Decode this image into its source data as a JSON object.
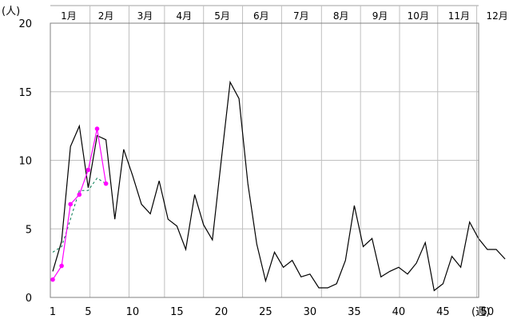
{
  "chart_data": {
    "type": "line",
    "y_unit_label": "(人)",
    "x_unit_label": "(週)",
    "ylim": [
      0,
      20
    ],
    "y_ticks": [
      "0",
      "5",
      "10",
      "15",
      "20"
    ],
    "xlim": [
      1,
      53
    ],
    "x_ticks": [
      "1",
      "5",
      "10",
      "15",
      "20",
      "25",
      "30",
      "35",
      "40",
      "45",
      "50"
    ],
    "x_tick_values": [
      1,
      5,
      10,
      15,
      20,
      25,
      30,
      35,
      40,
      45,
      50
    ],
    "months": [
      "1月",
      "2月",
      "3月",
      "4月",
      "5月",
      "6月",
      "7月",
      "8月",
      "9月",
      "10月",
      "11月",
      "12月"
    ],
    "month_centers": [
      2.8,
      7.0,
      11.4,
      15.8,
      20.1,
      24.5,
      29.0,
      33.5,
      37.9,
      42.2,
      46.8,
      51.1
    ],
    "grid": true,
    "series": [
      {
        "color": "#000000",
        "style": "solid",
        "marker": "none",
        "x": [
          1,
          2,
          3,
          4,
          5,
          6,
          7,
          8,
          9,
          10,
          11,
          12,
          13,
          14,
          15,
          16,
          17,
          18,
          19,
          20,
          21,
          22,
          23,
          24,
          25,
          26,
          27,
          28,
          29,
          30,
          31,
          32,
          33,
          34,
          35,
          36,
          37,
          38,
          39,
          40,
          41,
          42,
          43,
          44,
          45,
          46,
          47,
          48,
          49,
          50,
          51,
          52
        ],
        "values": [
          1.9,
          4.1,
          11.0,
          12.5,
          8.0,
          11.8,
          11.5,
          5.7,
          10.8,
          8.9,
          6.8,
          6.1,
          8.5,
          5.7,
          5.2,
          3.5,
          7.5,
          5.3,
          4.2,
          10.0,
          15.7,
          14.5,
          8.3,
          3.9,
          1.2,
          3.3,
          2.2,
          2.7,
          1.5,
          1.7,
          0.7,
          0.7,
          1.0,
          2.7,
          6.7,
          3.7,
          4.3,
          1.5,
          1.9,
          2.2,
          1.7,
          2.5,
          4.0,
          0.5,
          1.0,
          3.0,
          2.2,
          5.5,
          4.3,
          3.5,
          3.5,
          2.8
        ]
      },
      {
        "color": "#007a50",
        "style": "dashed",
        "marker": "none",
        "x": [
          1,
          2,
          3,
          4,
          5,
          6,
          7
        ],
        "values": [
          3.3,
          3.7,
          5.7,
          7.8,
          7.8,
          8.7,
          8.3
        ]
      },
      {
        "color": "#ff00ff",
        "style": "solid",
        "marker": "circle",
        "x": [
          1,
          2,
          3,
          4,
          5,
          6,
          7
        ],
        "values": [
          1.3,
          2.3,
          6.8,
          7.5,
          9.3,
          12.3,
          8.3
        ]
      }
    ]
  }
}
